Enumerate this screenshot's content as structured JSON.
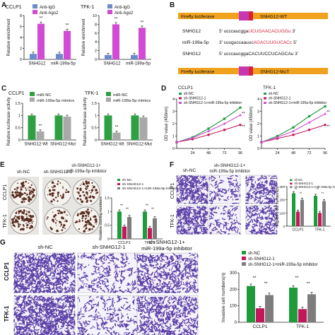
{
  "colors": {
    "ctrl_blue": "#6b8cc8",
    "treat_magenta": "#d14bd4",
    "nc_green": "#2ea043",
    "mimic_gray": "#a9a9a9",
    "shnc_green": "#1e9b3a",
    "sh_crimson": "#c2185b",
    "inhib_gray": "#7d7d7d",
    "purple_stain": "#5a3ea6",
    "seq_red": "#d6233a",
    "luc_orange": "#f0a21e",
    "insert_magenta": "#c837b2"
  },
  "panels": {
    "A": "A",
    "B": "B",
    "C": "C",
    "D": "D",
    "E": "E",
    "F": "F",
    "G": "G"
  },
  "panelB": {
    "firefly": "Firefly luciferase",
    "wt_label": "SNHG12-WT",
    "mut_label": "SNHG12-MuT",
    "row1_name": "SNHG12",
    "row1_seq_left": "5' ucccaucgga",
    "row1_seq_red": "UCUGAACACUGGu",
    "row1_seq_right": "3'",
    "row2_name": "miR-199a-5p",
    "row2_seq_left": "3' cuuguccaauuc",
    "row2_seq_red": "AGACUUGUCACc",
    "row2_seq_right": "5'",
    "row3_name": "SNHG12",
    "row3_seq": "5' ucccaucggaCACUUCCUCAGCAu 3'"
  },
  "image_labels": {
    "sh_nc": "sh-NC",
    "sh_snhg": "sh-SNHG12-1",
    "sh_snhg_inhib_1": "sh-SNHG12-1+",
    "sh_snhg_inhib_2": "miR-199a-5p inhibitor",
    "ccl": "CCLP1",
    "tfk": "TFK-1"
  },
  "chart_data": [
    {
      "id": "A-CCLP1",
      "type": "bar",
      "title": "CCLP1",
      "categories": [
        "SNHG12",
        "miR-199a-5p"
      ],
      "series": [
        {
          "name": "Anti-IgG",
          "values": [
            1.0,
            1.0
          ]
        },
        {
          "name": "Anti-Ago2",
          "values": [
            6.5,
            5.2
          ]
        }
      ],
      "ylabel": "Relative enrichment",
      "ylim": [
        0,
        8
      ],
      "yticks": [
        0,
        2,
        4,
        6,
        8
      ],
      "significance": [
        "**",
        "**"
      ]
    },
    {
      "id": "A-TFK1",
      "type": "bar",
      "title": "TFK-1",
      "categories": [
        "SNHG12",
        "miR-199a-5p"
      ],
      "series": [
        {
          "name": "Anti-IgG",
          "values": [
            1.0,
            1.0
          ]
        },
        {
          "name": "Anti-Ago2",
          "values": [
            8.0,
            7.2
          ]
        }
      ],
      "ylabel": "Relative enrichment",
      "ylim": [
        0,
        10
      ],
      "yticks": [
        0,
        2,
        4,
        6,
        8,
        10
      ],
      "significance": [
        "**",
        "**"
      ]
    },
    {
      "id": "C-CCLP1",
      "type": "bar",
      "title": "CCLP1",
      "categories": [
        "SNHG12-Wt",
        "SNHG12-Mut"
      ],
      "series": [
        {
          "name": "miR-NC",
          "values": [
            1.0,
            1.0
          ]
        },
        {
          "name": "miR-199a-5p mimics",
          "values": [
            0.35,
            0.95
          ]
        }
      ],
      "ylabel": "Relative luciferase activity",
      "ylim": [
        0,
        1.5
      ],
      "yticks": [
        0.0,
        0.5,
        1.0,
        1.5
      ],
      "significance": [
        "**",
        ""
      ]
    },
    {
      "id": "C-TFK1",
      "type": "bar",
      "title": "TFK-1",
      "categories": [
        "SNHG12-Wt",
        "SNHG12-Mut"
      ],
      "series": [
        {
          "name": "miR-NC",
          "values": [
            1.0,
            1.0
          ]
        },
        {
          "name": "miR-199a-5p mimics",
          "values": [
            0.3,
            0.92
          ]
        }
      ],
      "ylabel": "Relative luciferase activity",
      "ylim": [
        0,
        1.5
      ],
      "yticks": [
        0.0,
        0.5,
        1.0,
        1.5
      ],
      "significance": [
        "**",
        ""
      ]
    },
    {
      "id": "D-CCLP1",
      "type": "line",
      "title": "CCLP1",
      "x": [
        0,
        24,
        48,
        72,
        96
      ],
      "series": [
        {
          "name": "sh-NC",
          "values": [
            0.5,
            0.9,
            1.6,
            2.4,
            3.3
          ]
        },
        {
          "name": "sh-SNHG12-1",
          "values": [
            0.5,
            0.75,
            1.1,
            1.5,
            1.9
          ]
        },
        {
          "name": "sh-SNHG12-1+miR-199a-5p inhibitor",
          "values": [
            0.5,
            0.85,
            1.4,
            2.0,
            2.7
          ]
        }
      ],
      "ylabel": "OD value (450nm)",
      "ylim": [
        0,
        4
      ],
      "yticks": [
        0,
        1,
        2,
        3,
        4
      ],
      "xticks": [
        24,
        48,
        72,
        96
      ],
      "significance": [
        "**",
        "**"
      ]
    },
    {
      "id": "D-TFK1",
      "type": "line",
      "title": "TFK-1",
      "x": [
        0,
        24,
        48,
        72,
        96
      ],
      "series": [
        {
          "name": "sh-NC",
          "values": [
            0.5,
            1.0,
            1.7,
            2.6,
            3.4
          ]
        },
        {
          "name": "sh-SNHG12-1",
          "values": [
            0.5,
            0.8,
            1.1,
            1.5,
            1.9
          ]
        },
        {
          "name": "sh-SNHG12-1+miR-199a-5p inhibitor",
          "values": [
            0.5,
            0.9,
            1.4,
            2.1,
            2.8
          ]
        }
      ],
      "ylabel": "OD value (450nm)",
      "ylim": [
        0,
        4
      ],
      "yticks": [
        0,
        1,
        2,
        3,
        4
      ],
      "xticks": [
        24,
        48,
        72,
        96
      ],
      "significance": [
        "**",
        "**"
      ]
    },
    {
      "id": "E",
      "type": "bar",
      "categories": [
        "CCLP1",
        "TFK-1"
      ],
      "series": [
        {
          "name": "sh-NC",
          "values": [
            1.0,
            1.0
          ]
        },
        {
          "name": "sh-SNHG12-1",
          "values": [
            0.45,
            0.4
          ]
        },
        {
          "name": "sh-SNHG12-1+miR-199a-5p inhibitor",
          "values": [
            0.8,
            0.75
          ]
        }
      ],
      "ylabel": "Relative cloning numbers",
      "ylim": [
        0,
        1.5
      ],
      "yticks": [
        0.0,
        0.5,
        1.0,
        1.5
      ],
      "significance": [
        "**",
        "**",
        "**",
        "**"
      ]
    },
    {
      "id": "F",
      "type": "bar",
      "categories": [
        "CCLP1",
        "TFK-1"
      ],
      "series": [
        {
          "name": "sh-NC",
          "values": [
            250,
            230
          ]
        },
        {
          "name": "sh-SNHG12-1",
          "values": [
            110,
            100
          ]
        },
        {
          "name": "sh-SNHG12-1+miR-199a-5p inhibitor",
          "values": [
            200,
            190
          ]
        }
      ],
      "ylabel": "Migratory cell numbers(n)",
      "ylim": [
        0,
        300
      ],
      "yticks": [
        0,
        100,
        200,
        300
      ],
      "significance": [
        "**",
        "**",
        "**",
        "**"
      ]
    },
    {
      "id": "G",
      "type": "bar",
      "categories": [
        "CCLP1",
        "TFK-1"
      ],
      "series": [
        {
          "name": "sh-NC",
          "values": [
            220,
            210
          ]
        },
        {
          "name": "sh-SNHG12-1",
          "values": [
            85,
            80
          ]
        },
        {
          "name": "sh-SNHG12-1+miR-199a-5p inhibitor",
          "values": [
            165,
            170
          ]
        }
      ],
      "ylabel": "Invasive cell numbers(n)",
      "ylim": [
        0,
        300
      ],
      "yticks": [
        0,
        100,
        200,
        300
      ],
      "significance": [
        "**",
        "**",
        "**",
        "**"
      ]
    }
  ]
}
